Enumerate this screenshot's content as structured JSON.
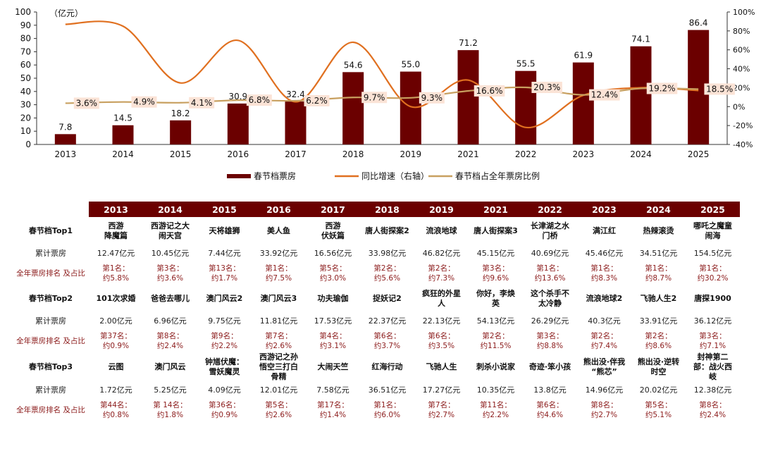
{
  "chart_data": {
    "type": "bar+line",
    "categories": [
      "2013",
      "2014",
      "2015",
      "2016",
      "2017",
      "2018",
      "2019",
      "2021",
      "2022",
      "2023",
      "2024",
      "2025"
    ],
    "unit_label": "（亿元）",
    "ylim_left": [
      0,
      100
    ],
    "yticks_left": [
      "0",
      "10",
      "20",
      "30",
      "40",
      "50",
      "60",
      "70",
      "80",
      "90",
      "100"
    ],
    "ylim_right": [
      -40,
      100
    ],
    "yticks_right": [
      "-40%",
      "-20%",
      "0%",
      "20%",
      "40%",
      "60%",
      "80%",
      "100%"
    ],
    "series": [
      {
        "name": "春节档票房",
        "type": "bar",
        "axis": "left",
        "color": "#6b0000",
        "values": [
          7.8,
          14.5,
          18.2,
          30.9,
          32.4,
          54.6,
          55.0,
          71.2,
          55.5,
          61.9,
          74.1,
          86.4
        ],
        "labels": [
          "7.8",
          "14.5",
          "18.2",
          "30.9",
          "32.4",
          "54.6",
          "55.0",
          "71.2",
          "55.5",
          "61.9",
          "74.1",
          "86.4"
        ]
      },
      {
        "name": "同比增速（右轴）",
        "type": "line",
        "axis": "right",
        "color": "#e07020",
        "values": [
          87,
          85,
          25,
          70,
          5,
          68,
          0,
          28,
          -22,
          12,
          20,
          17
        ]
      },
      {
        "name": "春节档占全年票房比例",
        "type": "line",
        "axis": "right",
        "color": "#c8a060",
        "values": [
          3.6,
          4.9,
          4.1,
          6.8,
          6.2,
          9.7,
          9.3,
          16.6,
          20.3,
          12.4,
          19.2,
          18.5
        ],
        "labels": [
          "3.6%",
          "4.9%",
          "4.1%",
          "6.8%",
          "6.2%",
          "9.7%",
          "9.3%",
          "16.6%",
          "20.3%",
          "12.4%",
          "19.2%",
          "18.5%"
        ]
      }
    ],
    "legend_position": "bottom-center"
  },
  "table": {
    "years": [
      "2013",
      "2014",
      "2015",
      "2016",
      "2017",
      "2018",
      "2019",
      "2021",
      "2022",
      "2023",
      "2024",
      "2025"
    ],
    "row_labels": {
      "top1": "春节档Top1",
      "top2": "春节档Top2",
      "top3": "春节档Top3",
      "box": "累计票房",
      "rank": "全年票房排名\n及占比"
    },
    "top1": {
      "films": [
        "西游\n降魔篇",
        "西游记之大\n闹天宫",
        "天将雄狮",
        "美人鱼",
        "西游\n伏妖篇",
        "唐人街探案2",
        "流浪地球",
        "唐人街探案3",
        "长津湖之水\n门桥",
        "满江红",
        "热辣滚烫",
        "哪吒之魔童\n闹海"
      ],
      "box": [
        "12.47亿元",
        "10.45亿元",
        "7.44亿元",
        "33.92亿元",
        "16.56亿元",
        "33.98亿元",
        "46.82亿元",
        "45.15亿元",
        "40.69亿元",
        "45.46亿元",
        "34.51亿元",
        "154.5亿元"
      ],
      "rank": [
        "第1名：\n约5.8%",
        "第3名：\n约3.6%",
        "第13名：\n约1.7%",
        "第1名：\n约7.5%",
        "第5名：\n约3.0%",
        "第2名：\n约5.6%",
        "第2名：\n约7.3%",
        "第3名：\n约9.6%",
        "第1名：\n约13.6%",
        "第1名：\n约8.3%",
        "第1名：\n约8.7%",
        "第1名：\n约30.2%"
      ]
    },
    "top2": {
      "films": [
        "101次求婚",
        "爸爸去哪儿",
        "澳门风云2",
        "澳门风云3",
        "功夫瑜伽",
        "捉妖记2",
        "疯狂的外星\n人",
        "你好，李焕\n英",
        "这个杀手不\n太冷静",
        "流浪地球2",
        "飞驰人生2",
        "唐探1900"
      ],
      "box": [
        "2.00亿元",
        "6.96亿元",
        "9.75亿元",
        "11.81亿元",
        "17.53亿元",
        "22.37亿元",
        "22.13亿元",
        "54.13亿元",
        "26.29亿元",
        "40.3亿元",
        "33.91亿元",
        "36.12亿元"
      ],
      "rank": [
        "第37名：\n约0.9%",
        "第8名：\n约2.4%",
        "第9名：\n约2.2%",
        "第7名：\n约2.6%",
        "第4名：\n约3.1%",
        "第6名：\n约3.7%",
        "第6名：\n约3.5%",
        "第2名：\n约11.5%",
        "第3名：\n约8.8%",
        "第2名：\n约7.4%",
        "第2名：\n约8.6%",
        "第3名：\n约7.1%"
      ]
    },
    "top3": {
      "films": [
        "云图",
        "澳门风云",
        "钟馗伏魔：\n雪妖魔灵",
        "西游记之孙\n悟空三打白\n骨精",
        "大闹天竺",
        "红海行动",
        "飞驰人生",
        "刺杀小说家",
        "奇迹·笨小孩",
        "熊出没·伴我\n“熊芯”",
        "熊出没·逆转\n时空",
        "封神第二\n部：战火西\n岐"
      ],
      "box": [
        "1.72亿元",
        "5.25亿元",
        "4.09亿元",
        "12.01亿元",
        "7.58亿元",
        "36.51亿元",
        "17.27亿元",
        "10.35亿元",
        "13.8亿元",
        "14.96亿元",
        "20.02亿元",
        "12.38亿元"
      ],
      "rank": [
        "第44名：\n约0.8%",
        "第 14名：\n约1.8%",
        "第36名：\n约0.9%",
        "第5名：\n约2.6%",
        "第17名：\n约1.4%",
        "第1名：\n约6.0%",
        "第7名：\n约2.7%",
        "第11名：\n约2.2%",
        "第6名：\n约4.6%",
        "第8名：\n约2.7%",
        "第5名：\n约5.1%",
        "第8名：\n约2.4%"
      ]
    }
  }
}
